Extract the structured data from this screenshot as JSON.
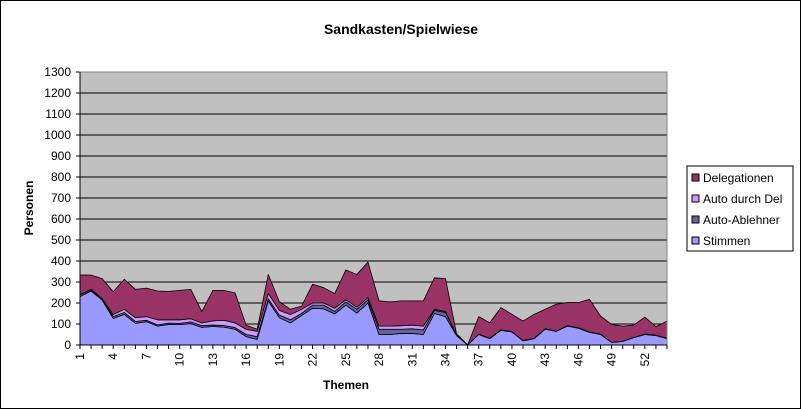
{
  "chart_data": {
    "type": "area",
    "stacked": true,
    "title": "Sandkasten/Spielwiese",
    "xlabel": "Themen",
    "ylabel": "Personen",
    "ylim": [
      0,
      1300
    ],
    "ytick_step": 100,
    "yticks": [
      "0",
      "100",
      "200",
      "300",
      "400",
      "500",
      "600",
      "700",
      "800",
      "900",
      "1000",
      "1100",
      "1200",
      "1300"
    ],
    "x": [
      1,
      2,
      3,
      4,
      5,
      6,
      7,
      8,
      9,
      10,
      11,
      12,
      13,
      14,
      15,
      16,
      17,
      18,
      19,
      20,
      21,
      22,
      23,
      24,
      25,
      26,
      27,
      28,
      29,
      30,
      31,
      32,
      33,
      34,
      35,
      36,
      37,
      38,
      39,
      40,
      41,
      42,
      43,
      44,
      45,
      46,
      47,
      48,
      49,
      50,
      51,
      52,
      53,
      54
    ],
    "xtick_labels": [
      "1",
      "4",
      "7",
      "10",
      "13",
      "16",
      "19",
      "22",
      "25",
      "28",
      "31",
      "34",
      "37",
      "40",
      "43",
      "46",
      "49",
      "52"
    ],
    "grid": true,
    "plot_background": "#C0C0C0",
    "legend_position": "right",
    "series": [
      {
        "name": "Stimmen",
        "color": "#9999FF",
        "values": [
          230,
          257,
          214,
          127,
          146,
          103,
          111,
          90,
          98,
          97,
          102,
          84,
          88,
          85,
          75,
          40,
          27,
          210,
          130,
          105,
          140,
          175,
          172,
          148,
          190,
          152,
          200,
          50,
          50,
          55,
          55,
          50,
          150,
          135,
          45,
          0,
          50,
          30,
          70,
          62,
          20,
          30,
          75,
          65,
          90,
          80,
          60,
          50,
          12,
          17,
          35,
          50,
          45,
          30
        ]
      },
      {
        "name": "Auto-Ablehner",
        "color": "#666699",
        "values": [
          8,
          5,
          4,
          8,
          9,
          9,
          7,
          6,
          6,
          6,
          8,
          8,
          7,
          8,
          8,
          10,
          13,
          10,
          12,
          15,
          10,
          15,
          18,
          12,
          15,
          18,
          15,
          25,
          25,
          20,
          22,
          22,
          15,
          20,
          3,
          0,
          1,
          1,
          1,
          1,
          1,
          1,
          1,
          1,
          1,
          1,
          1,
          1,
          1,
          1,
          1,
          1,
          1,
          1
        ]
      },
      {
        "name": "Auto durch Del",
        "color": "#CC99FF",
        "values": [
          3,
          3,
          3,
          10,
          15,
          18,
          17,
          24,
          16,
          17,
          15,
          13,
          20,
          25,
          22,
          25,
          25,
          25,
          23,
          25,
          20,
          10,
          10,
          15,
          10,
          10,
          10,
          15,
          15,
          17,
          18,
          18,
          5,
          5,
          1,
          0,
          1,
          1,
          1,
          1,
          1,
          1,
          1,
          1,
          1,
          1,
          1,
          1,
          0,
          0,
          0,
          1,
          1,
          1
        ]
      },
      {
        "name": "Delegationen",
        "color": "#993366",
        "values": [
          92,
          68,
          95,
          109,
          143,
          135,
          136,
          137,
          135,
          140,
          140,
          54,
          145,
          142,
          143,
          19,
          10,
          91,
          41,
          25,
          15,
          89,
          73,
          70,
          142,
          156,
          170,
          120,
          115,
          118,
          115,
          120,
          150,
          156,
          5,
          0,
          83,
          74,
          106,
          82,
          92,
          114,
          93,
          127,
          110,
          120,
          155,
          86,
          85,
          72,
          59,
          81,
          40,
          82
        ]
      }
    ],
    "legend_order": [
      "Delegationen",
      "Auto durch Del",
      "Auto-Ablehner",
      "Stimmen"
    ]
  }
}
